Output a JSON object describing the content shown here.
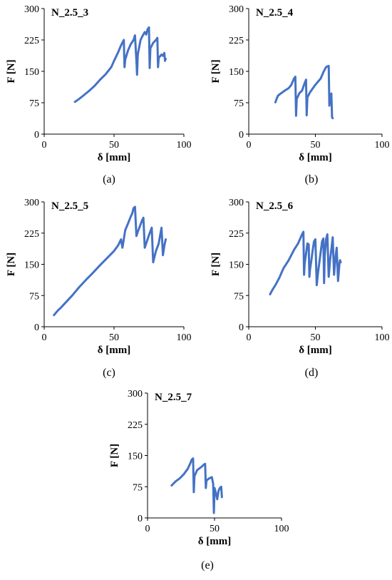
{
  "chart_data": [
    {
      "type": "line",
      "title": "N_2.5_3",
      "caption": "(a)",
      "xlabel": "δ [mm]",
      "ylabel": "F [N]",
      "xlim": [
        0,
        100
      ],
      "ylim": [
        0,
        300
      ],
      "xticks": [
        "0",
        "50",
        "100"
      ],
      "yticks": [
        "0",
        "75",
        "150",
        "225",
        "300"
      ],
      "color": "#4472C4",
      "series": [
        {
          "x": [
            22,
            25,
            28,
            32,
            36,
            40,
            44,
            48,
            50,
            53,
            55,
            57,
            57.5,
            58,
            60,
            62,
            64,
            65,
            66,
            66.5,
            67,
            69,
            70,
            72,
            73,
            74,
            75,
            75.5,
            76,
            78,
            80,
            81,
            81.5,
            82,
            84,
            85,
            86,
            86.5,
            87
          ],
          "y": [
            77,
            84,
            92,
            103,
            115,
            130,
            143,
            160,
            175,
            196,
            212,
            225,
            160,
            178,
            200,
            215,
            225,
            236,
            175,
            142,
            190,
            225,
            232,
            244,
            238,
            250,
            255,
            158,
            205,
            218,
            225,
            230,
            160,
            182,
            190,
            187,
            194,
            175,
            180
          ]
        }
      ]
    },
    {
      "type": "line",
      "title": "N_2.5_4",
      "caption": "(b)",
      "xlabel": "δ [mm]",
      "ylabel": "F [N]",
      "xlim": [
        0,
        100
      ],
      "ylim": [
        0,
        300
      ],
      "xticks": [
        "0",
        "50",
        "100"
      ],
      "yticks": [
        "0",
        "75",
        "150",
        "225",
        "300"
      ],
      "color": "#4472C4",
      "series": [
        {
          "x": [
            20,
            21,
            22,
            24,
            27,
            30,
            32,
            34,
            35,
            35.5,
            36,
            38,
            40,
            42,
            43,
            43.5,
            44,
            46,
            50,
            54,
            56,
            58,
            59,
            60,
            60.5,
            61,
            62,
            62.5,
            63
          ],
          "y": [
            76,
            85,
            92,
            97,
            104,
            110,
            118,
            133,
            137,
            44,
            84,
            98,
            104,
            122,
            130,
            45,
            88,
            100,
            118,
            133,
            148,
            160,
            162,
            163,
            68,
            90,
            97,
            40,
            38
          ]
        }
      ]
    },
    {
      "type": "line",
      "title": "N_2.5_5",
      "caption": "(c)",
      "xlabel": "δ [mm]",
      "ylabel": "F [N]",
      "xlim": [
        0,
        100
      ],
      "ylim": [
        0,
        300
      ],
      "xticks": [
        "0",
        "50",
        "100"
      ],
      "yticks": [
        "0",
        "75",
        "150",
        "225",
        "300"
      ],
      "color": "#4472C4",
      "series": [
        {
          "x": [
            7,
            10,
            12,
            15,
            20,
            25,
            30,
            35,
            40,
            45,
            50,
            53,
            55,
            56,
            58,
            60,
            62,
            63,
            64,
            65,
            66,
            67,
            70,
            71,
            72,
            75,
            77,
            78,
            80,
            82,
            84,
            85,
            86,
            87
          ],
          "y": [
            28,
            40,
            46,
            57,
            75,
            95,
            113,
            130,
            148,
            165,
            182,
            196,
            210,
            190,
            232,
            248,
            265,
            272,
            285,
            288,
            218,
            228,
            255,
            262,
            190,
            220,
            238,
            155,
            182,
            200,
            238,
            172,
            195,
            210
          ]
        }
      ]
    },
    {
      "type": "line",
      "title": "N_2.5_6",
      "caption": "(d)",
      "xlabel": "δ [mm]",
      "ylabel": "F [N]",
      "xlim": [
        0,
        100
      ],
      "ylim": [
        0,
        300
      ],
      "xticks": [
        "0",
        "50",
        "100"
      ],
      "yticks": [
        "0",
        "75",
        "150",
        "225",
        "300"
      ],
      "color": "#4472C4",
      "series": [
        {
          "x": [
            16,
            18,
            20,
            23,
            26,
            30,
            34,
            37,
            40,
            41,
            41.5,
            42,
            43,
            44,
            45,
            45.5,
            46,
            47,
            48,
            49,
            50,
            51,
            52,
            53,
            54,
            55,
            56,
            56.5,
            57,
            58,
            59,
            60,
            61,
            62,
            63,
            64,
            65,
            66,
            67,
            68,
            68.5,
            69
          ],
          "y": [
            78,
            90,
            100,
            118,
            140,
            160,
            185,
            200,
            222,
            228,
            125,
            152,
            175,
            200,
            198,
            120,
            138,
            160,
            185,
            205,
            210,
            100,
            130,
            155,
            180,
            205,
            212,
            105,
            170,
            210,
            222,
            120,
            160,
            185,
            215,
            125,
            165,
            190,
            110,
            150,
            160,
            155
          ]
        }
      ]
    },
    {
      "type": "line",
      "title": "N_2.5_7",
      "caption": "(e)",
      "xlabel": "δ [mm]",
      "ylabel": "F [N]",
      "xlim": [
        0,
        100
      ],
      "ylim": [
        0,
        300
      ],
      "xticks": [
        "0",
        "50",
        "100"
      ],
      "yticks": [
        "0",
        "75",
        "150",
        "225",
        "300"
      ],
      "color": "#4472C4",
      "series": [
        {
          "x": [
            18,
            21,
            24,
            27,
            30,
            32,
            33,
            34,
            34.5,
            35,
            37,
            40,
            42,
            43,
            43.5,
            44,
            46,
            48,
            49,
            49.5,
            50,
            51,
            52,
            53,
            54,
            55,
            55.5
          ],
          "y": [
            78,
            88,
            95,
            105,
            118,
            132,
            140,
            143,
            62,
            100,
            115,
            122,
            128,
            130,
            72,
            90,
            95,
            98,
            82,
            12,
            72,
            60,
            45,
            65,
            72,
            75,
            50
          ]
        }
      ]
    }
  ]
}
